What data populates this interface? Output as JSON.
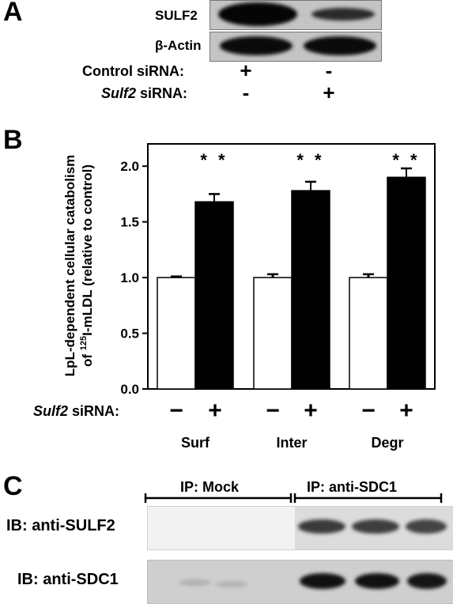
{
  "panelA": {
    "letter": "A",
    "row1_label": "SULF2",
    "row2_label": "β-Actin",
    "control_label": "Control siRNA:",
    "sulf2_label_italic": "Sulf2",
    "sulf2_label_rest": " siRNA:",
    "control_symbols": [
      "+",
      "-"
    ],
    "sulf2_symbols": [
      "-",
      "+"
    ]
  },
  "panelB": {
    "letter": "B",
    "ylabel_line1": "LpL-dependent cellular catabolism",
    "ylabel_line2_pre": "of ",
    "ylabel_line2_sup": "125",
    "ylabel_line2_post": "I-mLDL (relative to control)",
    "sulf2_label_italic": "Sulf2",
    "sulf2_label_rest": " siRNA:",
    "symbols": [
      "−",
      "+",
      "−",
      "+",
      "−",
      "+"
    ],
    "significance": "* *"
  },
  "chart_data": {
    "type": "bar",
    "categories": [
      "Surf",
      "Inter",
      "Degr"
    ],
    "series": [
      {
        "values": [
          1.0,
          1.0,
          1.0
        ],
        "errors": [
          0.01,
          0.03,
          0.03
        ],
        "color": "#ffffff"
      },
      {
        "values": [
          1.68,
          1.78,
          1.9
        ],
        "errors": [
          0.07,
          0.08,
          0.08
        ],
        "color": "#000000"
      }
    ],
    "xlabel": "",
    "ylabel": "LpL-dependent cellular catabolism of 125I-mLDL (relative to control)",
    "ylim": [
      0,
      2.2
    ],
    "yticks": [
      "0.0",
      "0.5",
      "1.0",
      "1.5",
      "2.0"
    ],
    "ytick_values": [
      0,
      0.5,
      1.0,
      1.5,
      2.0
    ],
    "grid": false,
    "annotations": [
      "* *",
      "* *",
      "* *"
    ]
  },
  "panelC": {
    "letter": "C",
    "ip_mock": "IP: Mock",
    "ip_sdc1": "IP: anti-SDC1",
    "ib1": "IB: anti-SULF2",
    "ib2": "IB: anti-SDC1"
  }
}
